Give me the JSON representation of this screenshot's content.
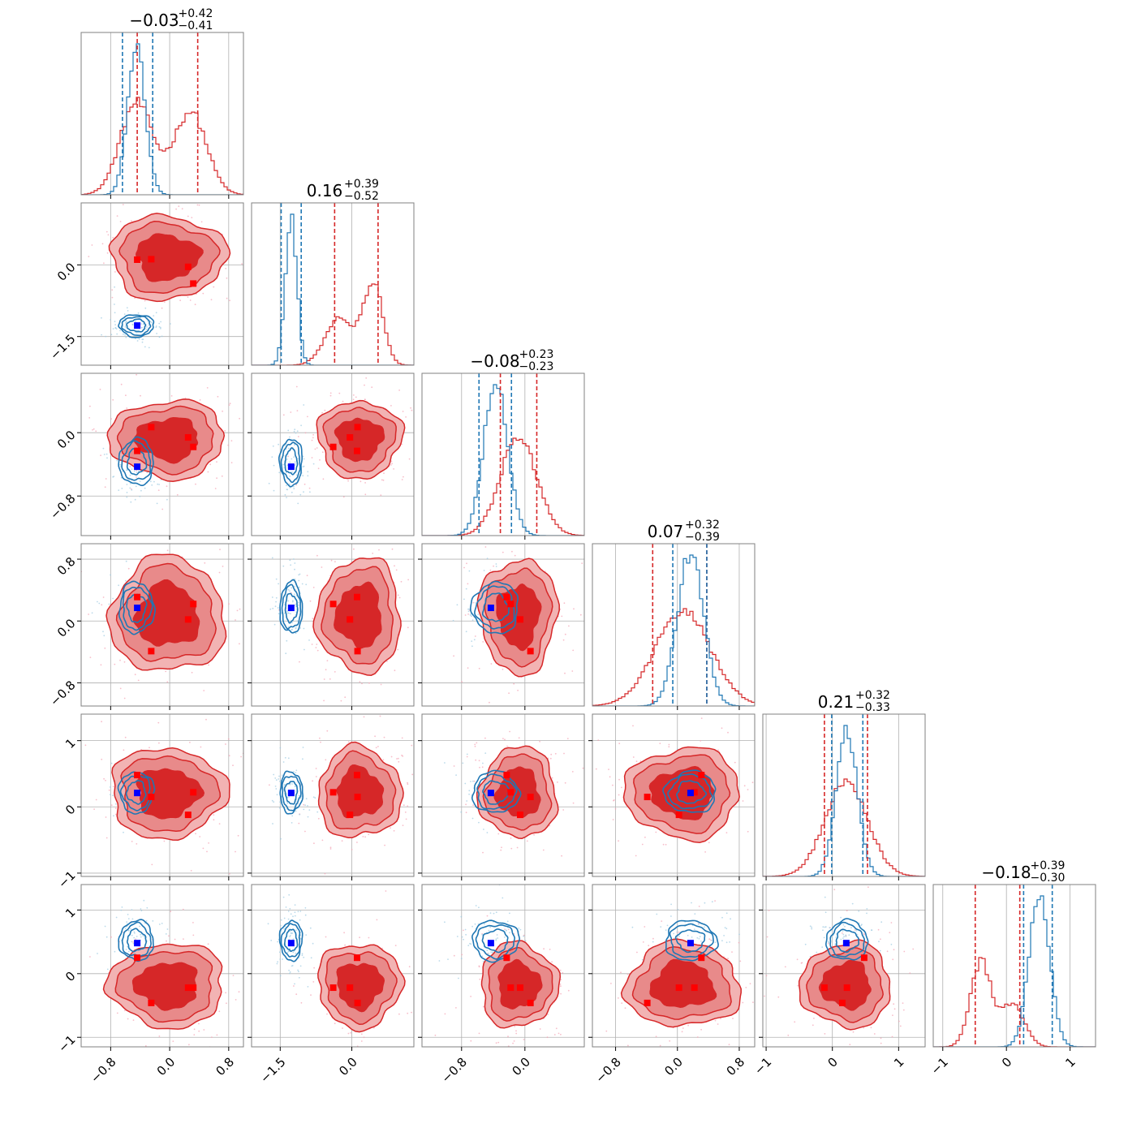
{
  "chart_data": {
    "type": "corner",
    "n_params": 6,
    "series": [
      {
        "name": "",
        "color": "#d62728",
        "fill": "#d62728",
        "marker_color": "#ff0000"
      },
      {
        "name": "",
        "color": "#1f77b4",
        "fill": "none",
        "marker_color": "#0000ff"
      }
    ],
    "params": [
      {
        "range": [
          -1.2,
          1.0
        ],
        "ticks": [
          -0.8,
          0.0,
          0.8
        ],
        "tick_labels": [
          "−0.8",
          "0.0",
          "0.8"
        ],
        "title_median": "−0.03",
        "title_plus": "+0.42",
        "title_minus": "−0.41",
        "quantiles": {
          "red": [
            -0.44,
            0.38
          ],
          "blue": [
            -0.64,
            -0.23
          ]
        }
      },
      {
        "range": [
          -2.1,
          1.3
        ],
        "ticks": [
          -1.5,
          0.0
        ],
        "tick_labels": [
          "−1.5",
          "0.0"
        ],
        "title_median": "0.16",
        "title_plus": "+0.39",
        "title_minus": "−0.52",
        "quantiles": {
          "red": [
            -0.36,
            0.55
          ],
          "blue": [
            -1.48,
            -1.06
          ]
        }
      },
      {
        "range": [
          -1.3,
          0.75
        ],
        "ticks": [
          -0.8,
          0.0
        ],
        "tick_labels": [
          "−0.8",
          "0.0"
        ],
        "title_median": "−0.08",
        "title_plus": "+0.23",
        "title_minus": "−0.23",
        "quantiles": {
          "red": [
            -0.31,
            0.15
          ],
          "blue": [
            -0.58,
            -0.17
          ]
        }
      },
      {
        "range": [
          -1.1,
          1.0
        ],
        "ticks": [
          -0.8,
          0.0,
          0.8
        ],
        "tick_labels": [
          "−0.8",
          "0.0",
          "0.8"
        ],
        "title_median": "0.07",
        "title_plus": "+0.32",
        "title_minus": "−0.39",
        "quantiles": {
          "red": [
            -0.32,
            0.38
          ],
          "blue": [
            -0.06,
            0.38
          ]
        }
      },
      {
        "range": [
          -1.05,
          1.4
        ],
        "ticks": [
          -1,
          0,
          1
        ],
        "tick_labels": [
          "−1",
          "0",
          "1"
        ],
        "title_median": "0.21",
        "title_plus": "+0.32",
        "title_minus": "−0.33",
        "quantiles": {
          "red": [
            -0.12,
            0.53
          ],
          "blue": [
            -0.01,
            0.46
          ]
        }
      },
      {
        "range": [
          -1.15,
          1.4
        ],
        "ticks": [
          -1,
          0,
          1
        ],
        "tick_labels": [
          "−1",
          "0",
          "1"
        ],
        "title_median": "−0.18",
        "title_plus": "+0.39",
        "title_minus": "−0.30",
        "quantiles": {
          "red": [
            -0.49,
            0.21
          ],
          "blue": [
            0.27,
            0.72
          ]
        }
      }
    ],
    "hist": {
      "red": [
        {
          "mean": -0.03,
          "sd": 0.42,
          "bimodal": [
            [
              -0.45,
              0.22,
              1.0
            ],
            [
              0.28,
              0.22,
              0.9
            ]
          ]
        },
        {
          "mean": 0.16,
          "sd": 0.45,
          "bimodal": [
            [
              -0.25,
              0.3,
              0.6
            ],
            [
              0.45,
              0.2,
              1.0
            ]
          ]
        },
        {
          "mean": -0.08,
          "sd": 0.23
        },
        {
          "mean": 0.07,
          "sd": 0.36
        },
        {
          "mean": 0.21,
          "sd": 0.32
        },
        {
          "mean": -0.18,
          "sd": 0.35,
          "bimodal": [
            [
              -0.4,
              0.16,
              1.0
            ],
            [
              0.1,
              0.18,
              0.5
            ]
          ]
        }
      ],
      "blue": [
        {
          "mean": -0.45,
          "sd": 0.12
        },
        {
          "mean": -1.27,
          "sd": 0.12
        },
        {
          "mean": -0.37,
          "sd": 0.15
        },
        {
          "mean": 0.17,
          "sd": 0.17
        },
        {
          "mean": 0.22,
          "sd": 0.16
        },
        {
          "mean": 0.52,
          "sd": 0.16
        }
      ]
    },
    "blue_truth": [
      -0.44,
      -1.27,
      -0.43,
      0.17,
      0.21,
      0.48
    ],
    "red_truth": [
      [
        -0.44,
        0.11,
        -0.23,
        0.31,
        0.48,
        0.25
      ],
      [
        -0.25,
        0.12,
        0.07,
        -0.39,
        0.15,
        -0.46
      ],
      [
        0.25,
        -0.04,
        -0.06,
        0.02,
        -0.12,
        -0.22
      ],
      [
        0.32,
        -0.39,
        -0.18,
        0.22,
        0.22,
        -0.22
      ]
    ],
    "red_shape": [
      {
        "mean": -0.03,
        "sd": 0.4
      },
      {
        "mean": 0.16,
        "sd": 0.45
      },
      {
        "mean": -0.08,
        "sd": 0.25
      },
      {
        "mean": 0.07,
        "sd": 0.38
      },
      {
        "mean": 0.21,
        "sd": 0.35
      },
      {
        "mean": -0.18,
        "sd": 0.34
      }
    ],
    "grid": true
  }
}
